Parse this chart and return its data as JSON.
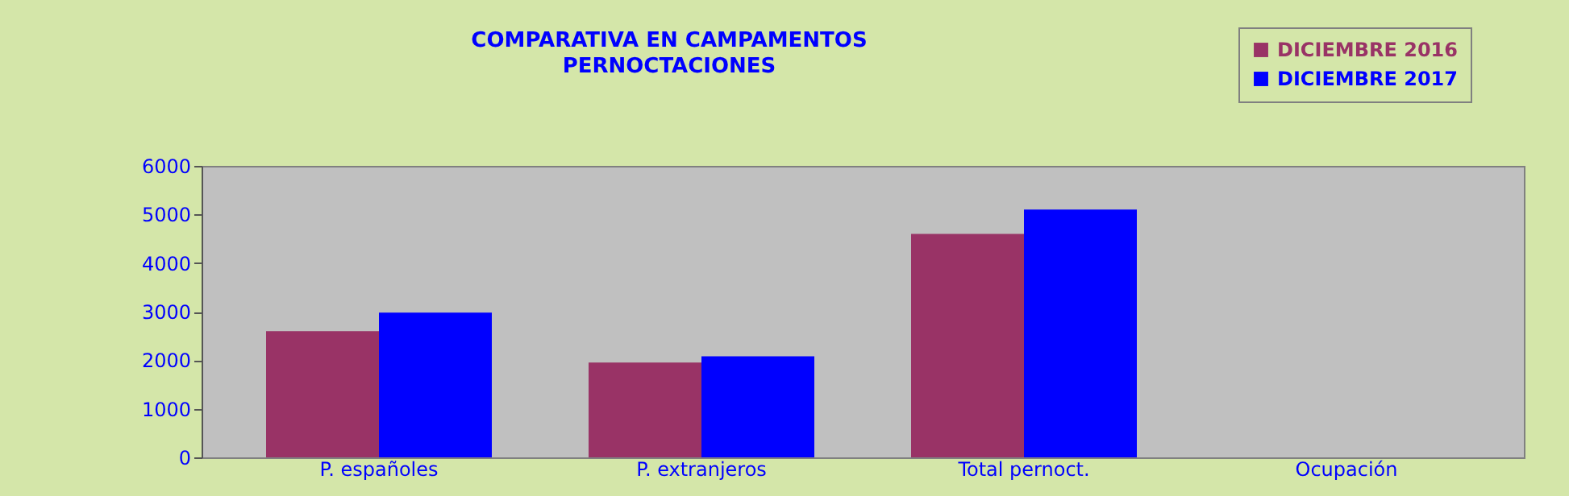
{
  "chart_data": {
    "type": "bar",
    "title": [
      "COMPARATIVA EN CAMPAMENTOS",
      "PERNOCTACIONES"
    ],
    "categories": [
      "P. españoles",
      "P. extranjeros",
      "Total pernoct.",
      "Ocupación"
    ],
    "series": [
      {
        "name": "DICIEMBRE 2016",
        "color": "#993366",
        "values": [
          2600,
          1950,
          4600,
          0
        ]
      },
      {
        "name": "DICIEMBRE 2017",
        "color": "#0000ff",
        "values": [
          2980,
          2080,
          5100,
          0
        ]
      }
    ],
    "ylim": [
      0,
      6000
    ],
    "yticks": [
      0,
      1000,
      2000,
      3000,
      4000,
      5000,
      6000
    ],
    "grid": false,
    "legend": "top right"
  }
}
